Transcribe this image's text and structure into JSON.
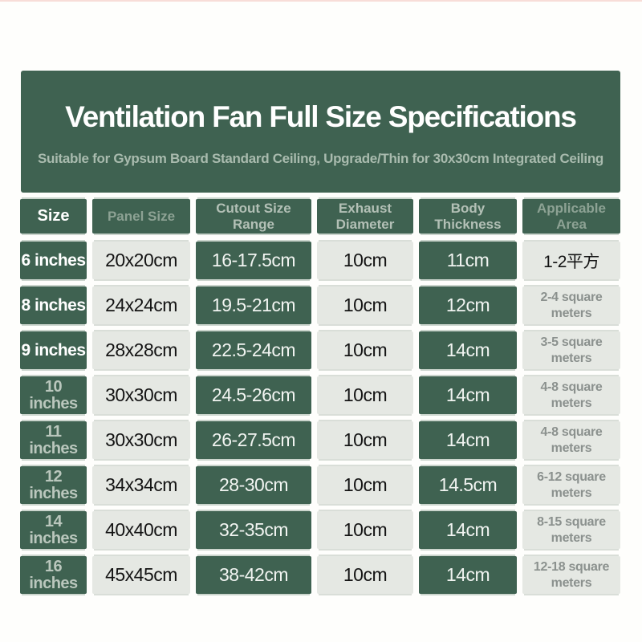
{
  "colors": {
    "banner_green": "#3f6251",
    "cell_green": "#3f6251",
    "cell_gray": "#e5e8e3",
    "top_border_pink": "#f8ddd8"
  },
  "banner": {
    "title": "Ventilation Fan Full Size Specifications",
    "subtitle": "Suitable for Gypsum Board Standard Ceiling, Upgrade/Thin for 30x30cm Integrated Ceiling"
  },
  "table": {
    "columns": [
      {
        "label": "Size"
      },
      {
        "label": "Panel Size"
      },
      {
        "label": "Cutout Size\nRange"
      },
      {
        "label": "Exhaust\nDiameter"
      },
      {
        "label": "Body\nThickness"
      },
      {
        "label": "Applicable\nArea"
      }
    ],
    "rows": [
      {
        "size": "6 inches",
        "panel": "20x20cm",
        "cutout": "16-17.5cm",
        "exhaust": "10cm",
        "body": "11cm",
        "area": "1-2平方"
      },
      {
        "size": "8 inches",
        "panel": "24x24cm",
        "cutout": "19.5-21cm",
        "exhaust": "10cm",
        "body": "12cm",
        "area": "2-4 square\nmeters"
      },
      {
        "size": "9 inches",
        "panel": "28x28cm",
        "cutout": "22.5-24cm",
        "exhaust": "10cm",
        "body": "14cm",
        "area": "3-5 square\nmeters"
      },
      {
        "size": "10\ninches",
        "panel": "30x30cm",
        "cutout": "24.5-26cm",
        "exhaust": "10cm",
        "body": "14cm",
        "area": "4-8 square\nmeters"
      },
      {
        "size": "11\ninches",
        "panel": "30x30cm",
        "cutout": "26-27.5cm",
        "exhaust": "10cm",
        "body": "14cm",
        "area": "4-8 square\nmeters"
      },
      {
        "size": "12\ninches",
        "panel": "34x34cm",
        "cutout": "28-30cm",
        "exhaust": "10cm",
        "body": "14.5cm",
        "area": "6-12 square\nmeters"
      },
      {
        "size": "14\ninches",
        "panel": "40x40cm",
        "cutout": "32-35cm",
        "exhaust": "10cm",
        "body": "14cm",
        "area": "8-15 square\nmeters"
      },
      {
        "size": "16\ninches",
        "panel": "45x45cm",
        "cutout": "38-42cm",
        "exhaust": "10cm",
        "body": "14cm",
        "area": "12-18 square\nmeters"
      }
    ]
  }
}
